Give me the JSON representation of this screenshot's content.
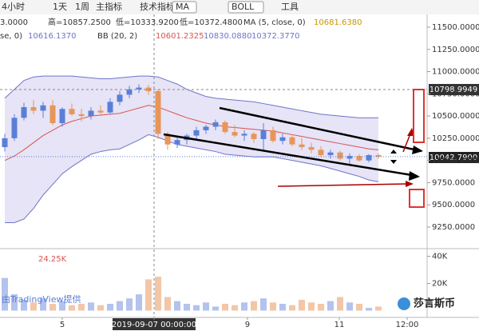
{
  "toolbar": {
    "items": [
      "4小时",
      "1天",
      "1周",
      "主指标",
      "技术指标",
      "MA",
      "BOLL",
      "工具"
    ]
  },
  "legend_lines": {
    "ohlc": [
      "3.0000",
      "高=10857.2500",
      "低=10333.9200",
      "低=10372.4800"
    ],
    "ma": [
      "MA (5, close, 0)",
      "10681.6380"
    ],
    "bb": [
      "se, 0)",
      "10616.1370",
      "BB (20, 2)",
      "10601.2325",
      "10830.0880",
      "10372.3770"
    ],
    "volume": "24.25K"
  },
  "price_labels": [
    "10798.9949",
    "10042.7900"
  ],
  "watermark": "由TradingView提供",
  "brand": "莎言斯币",
  "chart_data": [
    {
      "type": "candlestick",
      "categories": [
        null,
        null,
        null,
        null,
        null,
        null,
        null,
        null,
        null,
        null,
        null,
        null,
        null,
        null,
        null,
        null,
        null,
        null,
        null,
        null,
        null,
        null,
        null,
        null,
        null,
        null,
        null,
        null,
        null,
        null,
        null,
        null,
        null,
        null,
        null,
        null,
        null,
        null,
        null,
        null
      ],
      "open": [
        10150,
        10250,
        10480,
        10600,
        10560,
        10620,
        10420,
        10580,
        10520,
        10500,
        10560,
        10540,
        10660,
        10740,
        10800,
        10820,
        10780,
        10300,
        10180,
        10230,
        10280,
        10340,
        10380,
        10430,
        10320,
        10280,
        10300,
        10240,
        10340,
        10220,
        10260,
        10180,
        10150,
        10120,
        10060,
        10090,
        10020,
        10050,
        10000,
        10060
      ],
      "high": [
        10300,
        10520,
        10650,
        10680,
        10660,
        10680,
        10600,
        10640,
        10580,
        10600,
        10620,
        10700,
        10780,
        10840,
        10857,
        10850,
        10800,
        10320,
        10260,
        10300,
        10380,
        10400,
        10460,
        10450,
        10400,
        10340,
        10320,
        10420,
        10380,
        10300,
        10280,
        10250,
        10200,
        10160,
        10120,
        10110,
        10080,
        10070,
        10070,
        10080
      ],
      "low": [
        10100,
        10220,
        10450,
        10520,
        10480,
        10400,
        10380,
        10500,
        10440,
        10460,
        10500,
        10520,
        10620,
        10700,
        10760,
        10740,
        10240,
        10120,
        10140,
        10180,
        10240,
        10300,
        10340,
        10300,
        10260,
        10220,
        10200,
        10100,
        10200,
        10180,
        10160,
        10120,
        10080,
        10040,
        10020,
        10000,
        9960,
        9990,
        9980,
        10020
      ],
      "close": [
        10250,
        10480,
        10600,
        10560,
        10620,
        10420,
        10580,
        10520,
        10500,
        10560,
        10540,
        10660,
        10740,
        10800,
        10820,
        10780,
        10300,
        10180,
        10230,
        10280,
        10340,
        10380,
        10430,
        10320,
        10280,
        10300,
        10240,
        10340,
        10220,
        10260,
        10180,
        10150,
        10120,
        10060,
        10090,
        10020,
        10050,
        10000,
        10060,
        10042.79
      ],
      "up_color": "#5b7fd8",
      "down_color": "#e8955a",
      "bands": [
        {
          "name": "upper",
          "color": "#6f74c9",
          "values": [
            10700,
            10800,
            10900,
            10940,
            10950,
            10950,
            10950,
            10950,
            10940,
            10930,
            10920,
            10920,
            10930,
            10940,
            10950,
            10950,
            10940,
            10900,
            10860,
            10800,
            10760,
            10720,
            10700,
            10690,
            10680,
            10670,
            10660,
            10640,
            10620,
            10600,
            10580,
            10560,
            10540,
            10520,
            10510,
            10500,
            10490,
            10480,
            10480,
            10480
          ]
        },
        {
          "name": "basis",
          "color": "#d9534f",
          "values": [
            10000,
            10050,
            10120,
            10200,
            10280,
            10340,
            10400,
            10440,
            10470,
            10500,
            10510,
            10520,
            10530,
            10560,
            10590,
            10620,
            10600,
            10560,
            10520,
            10480,
            10450,
            10420,
            10400,
            10380,
            10370,
            10360,
            10350,
            10340,
            10330,
            10310,
            10290,
            10270,
            10250,
            10230,
            10210,
            10190,
            10170,
            10150,
            10130,
            10120
          ]
        },
        {
          "name": "lower",
          "color": "#6f74c9",
          "values": [
            9300,
            9300,
            9340,
            9460,
            9610,
            9730,
            9850,
            9930,
            10000,
            10070,
            10100,
            10120,
            10130,
            10180,
            10230,
            10290,
            10260,
            10220,
            10180,
            10160,
            10140,
            10120,
            10100,
            10070,
            10060,
            10050,
            10040,
            10040,
            10040,
            10020,
            10000,
            9980,
            9960,
            9940,
            9910,
            9880,
            9850,
            9820,
            9780,
            9760
          ]
        }
      ],
      "band_fill": "#e6e4f6",
      "ylim": [
        9016,
        11626
      ],
      "yticks": [
        {
          "value": 9250,
          "label": "9250.0000"
        },
        {
          "value": 9500,
          "label": "9500.0000"
        },
        {
          "value": 9750,
          "label": "9750.0000"
        },
        {
          "value": 10000,
          "label": "10000.0000"
        },
        {
          "value": 10250,
          "label": "10250.0000"
        },
        {
          "value": 10500,
          "label": "10500.0000"
        },
        {
          "value": 10750,
          "label": "10750.0000"
        },
        {
          "value": 11000,
          "label": "11000.0000"
        },
        {
          "value": 11250,
          "label": "11250.0000"
        },
        {
          "value": 11500,
          "label": "11500.0000"
        }
      ],
      "xticks": [
        {
          "value": 6,
          "label": "5"
        },
        {
          "value": 15.58,
          "label": "2019-09-07 00:00:00"
        },
        {
          "value": 25.33,
          "label": "9"
        },
        {
          "value": 34.92,
          "label": "11"
        },
        {
          "value": 42,
          "label": "12:00"
        }
      ]
    },
    {
      "type": "volume",
      "values": [
        24000,
        12000,
        8000,
        6000,
        9000,
        5000,
        7000,
        4000,
        5000,
        6000,
        4000,
        5000,
        7000,
        9000,
        12000,
        23000,
        25000,
        10000,
        7000,
        5000,
        4000,
        6000,
        3000,
        5000,
        4000,
        6000,
        7000,
        9000,
        6000,
        5000,
        4000,
        8000,
        6000,
        5000,
        7000,
        10000,
        6000,
        5000,
        2000,
        3000
      ],
      "up_color": "#b3c3ee",
      "down_color": "#f3c6a8",
      "ylim": [
        -5000,
        45000
      ],
      "yticks": [
        {
          "value": 20000,
          "label": "20K"
        },
        {
          "value": 40000,
          "label": "40K"
        }
      ]
    }
  ]
}
